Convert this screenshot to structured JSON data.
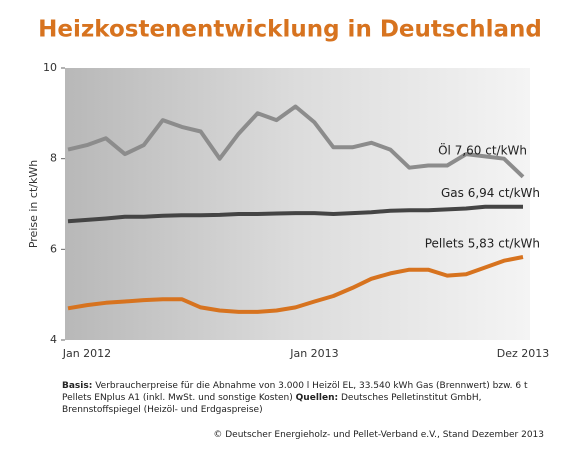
{
  "chart_data": {
    "type": "line",
    "title": "Heizkostenentwicklung in Deutschland",
    "y_label": "Preise in ct/kWh",
    "categories": [
      null,
      "Jan 2012",
      null,
      null,
      null,
      null,
      null,
      null,
      null,
      null,
      null,
      null,
      null,
      "Jan 2013",
      null,
      null,
      null,
      null,
      null,
      null,
      null,
      null,
      null,
      null,
      "Dez 2013"
    ],
    "ylim": [
      4,
      10
    ],
    "yticks": [
      4,
      6,
      8,
      10
    ],
    "series": [
      {
        "name": "Öl",
        "label": "Öl 7,60 ct/kWh",
        "color": "#8c8c8c",
        "values": [
          8.2,
          8.3,
          8.45,
          8.1,
          8.3,
          8.85,
          8.7,
          8.6,
          8.0,
          8.55,
          9.0,
          8.85,
          9.15,
          8.8,
          8.25,
          8.25,
          8.35,
          8.2,
          7.8,
          7.85,
          7.85,
          8.1,
          8.05,
          8.0,
          7.6
        ]
      },
      {
        "name": "Gas",
        "label": "Gas 6,94 ct/kWh",
        "color": "#444444",
        "values": [
          6.62,
          6.65,
          6.68,
          6.72,
          6.72,
          6.74,
          6.75,
          6.75,
          6.76,
          6.78,
          6.78,
          6.79,
          6.8,
          6.8,
          6.78,
          6.8,
          6.82,
          6.85,
          6.86,
          6.86,
          6.88,
          6.9,
          6.94,
          6.94,
          6.94
        ]
      },
      {
        "name": "Pellets",
        "label": "Pellets 5,83 ct/kWh",
        "color": "#d7731f",
        "values": [
          4.7,
          4.77,
          4.82,
          4.85,
          4.88,
          4.9,
          4.9,
          4.72,
          4.65,
          4.62,
          4.62,
          4.65,
          4.72,
          4.85,
          4.97,
          5.15,
          5.35,
          5.47,
          5.55,
          5.55,
          5.42,
          5.45,
          5.6,
          5.75,
          5.83
        ]
      }
    ],
    "footnote": {
      "basis_label": "Basis:",
      "basis_text": "Verbraucherpreise für die Abnahme von 3.000 l Heizöl EL, 33.540 kWh Gas (Brennwert) bzw. 6 t Pellets ENplus A1 (inkl. MwSt. und sonstige Kosten)",
      "sources_label": "Quellen:",
      "sources_text": "Deutsches Pelletinstitut GmbH, Brennstoffspiegel (Heizöl- und Erdgaspreise)"
    },
    "copyright": "© Deutscher Energieholz- und Pellet-Verband e.V., Stand Dezember 2013"
  }
}
